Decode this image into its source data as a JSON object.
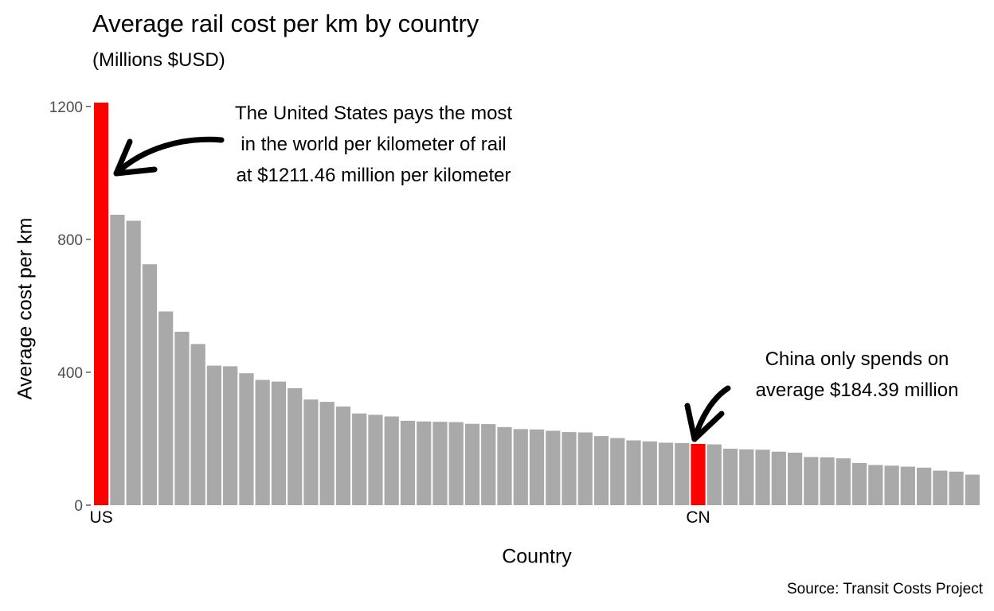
{
  "title": "Average rail cost per km by country",
  "subtitle": "(Millions $USD)",
  "source": "Source: Transit Costs Project",
  "colors": {
    "highlight": "#ff0000",
    "default": "#a9a9a9",
    "arrow": "#000000"
  },
  "annotations": {
    "us": [
      "The United States pays the most",
      "in the world per kilometer of rail",
      "at $1211.46 million per kilometer"
    ],
    "cn": [
      "China only spends on",
      "average $184.39 million"
    ]
  },
  "chart_data": {
    "type": "bar",
    "xlabel": "Country",
    "ylabel": "Average cost per km",
    "ylim": [
      0,
      1211.46
    ],
    "yticks": [
      0,
      400,
      800,
      1200
    ],
    "grid": false,
    "legend": "none",
    "categories": [
      "US",
      "",
      "",
      "",
      "",
      "",
      "",
      "",
      "",
      "",
      "",
      "",
      "",
      "",
      "",
      "",
      "",
      "",
      "",
      "",
      "",
      "",
      "",
      "",
      "",
      "",
      "",
      "",
      "",
      "",
      "",
      "",
      "",
      "",
      "",
      "",
      "",
      "",
      "CN",
      "",
      "",
      "",
      "",
      "",
      "",
      "",
      "",
      "",
      "",
      "",
      "",
      "",
      "",
      "",
      ""
    ],
    "tick_labels": {
      "0": "US",
      "37": "CN"
    },
    "highlighted": [
      0,
      37
    ],
    "values": [
      1211.46,
      874,
      856,
      725,
      583,
      522,
      485,
      420,
      418,
      397,
      377,
      372,
      352,
      318,
      311,
      297,
      276,
      272,
      267,
      254,
      252,
      251,
      250,
      245,
      244,
      235,
      229,
      228,
      224,
      220,
      219,
      208,
      202,
      195,
      192,
      188,
      187,
      184.39,
      183,
      170,
      168,
      167,
      161,
      158,
      145,
      144,
      141,
      127,
      121,
      119,
      116,
      113,
      104,
      101,
      92
    ]
  }
}
